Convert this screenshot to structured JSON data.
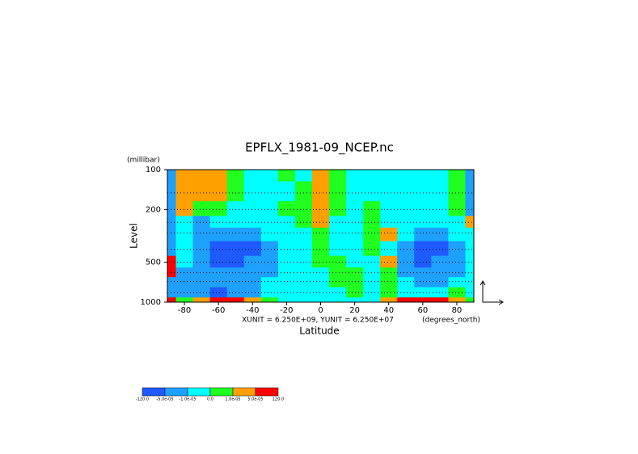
{
  "chart_data": {
    "type": "contour",
    "title": "EPFLX_1981-09_NCEP.nc",
    "x_label": "Latitude",
    "x_unit": "(degrees_north)",
    "y_label": "Level",
    "y_unit": "(millibar)",
    "annotation": "XUNIT = 6.250E+09, YUNIT = 6.250E+07",
    "log_y": true,
    "reverse_y": true,
    "xlim": [
      -90,
      90
    ],
    "xticks": [
      -80,
      -60,
      -40,
      -20,
      0,
      20,
      40,
      60,
      80
    ],
    "ylim": [
      100,
      1000
    ],
    "yticks": [
      100,
      200,
      500,
      1000
    ],
    "x": [
      -90,
      -80,
      -70,
      -60,
      -50,
      -40,
      -30,
      -20,
      -10,
      0,
      10,
      20,
      30,
      40,
      50,
      60,
      70,
      80,
      90
    ],
    "levels": [
      100,
      150,
      200,
      250,
      300,
      400,
      500,
      600,
      700,
      850,
      1000
    ],
    "z": [
      [
        -3e-05,
        3e-05,
        3e-05,
        3e-05,
        5e-06,
        -5e-06,
        -5e-06,
        5e-06,
        -5e-06,
        3e-05,
        5e-06,
        -5e-06,
        -5e-06,
        -5e-06,
        -5e-06,
        -5e-06,
        -5e-06,
        5e-06,
        -3e-05
      ],
      [
        -3e-05,
        3e-05,
        3e-05,
        3e-05,
        5e-06,
        -5e-06,
        -5e-06,
        -5e-06,
        5e-06,
        3e-05,
        5e-06,
        -5e-06,
        -5e-06,
        -5e-06,
        -5e-06,
        -5e-06,
        -5e-06,
        5e-06,
        -3e-05
      ],
      [
        -3e-05,
        3e-05,
        5e-06,
        5e-06,
        -5e-06,
        -5e-06,
        -5e-06,
        5e-06,
        5e-06,
        3e-05,
        5e-06,
        -5e-06,
        5e-06,
        -5e-06,
        -5e-06,
        -5e-06,
        -5e-06,
        5e-06,
        -3e-05
      ],
      [
        -3e-05,
        -5e-06,
        -3e-05,
        -5e-06,
        -5e-06,
        -5e-06,
        -5e-06,
        -5e-06,
        5e-06,
        3e-05,
        -5e-06,
        -5e-06,
        5e-06,
        -5e-06,
        -5e-06,
        -5e-06,
        -5e-06,
        -5e-06,
        3e-05
      ],
      [
        -3e-05,
        -5e-06,
        -3e-05,
        -3e-05,
        -3e-05,
        -3e-05,
        -5e-06,
        -5e-06,
        -5e-06,
        5e-06,
        -5e-06,
        -5e-06,
        5e-06,
        3e-05,
        -5e-06,
        -3e-05,
        -3e-05,
        -5e-06,
        -5e-06
      ],
      [
        -3e-05,
        -5e-06,
        -3e-05,
        -0.0001,
        -0.0001,
        -0.0001,
        -3e-05,
        -5e-06,
        -5e-06,
        5e-06,
        -5e-06,
        -5e-06,
        5e-06,
        -5e-06,
        -3e-05,
        -0.0001,
        -0.0001,
        -3e-05,
        -5e-06
      ],
      [
        0.0001,
        -5e-06,
        -3e-05,
        -0.0001,
        -0.0001,
        -3e-05,
        -3e-05,
        -5e-06,
        -5e-06,
        5e-06,
        5e-06,
        -5e-06,
        -5e-06,
        3e-05,
        -3e-05,
        -0.0001,
        -3e-05,
        -3e-05,
        -5e-06
      ],
      [
        0.0001,
        -3e-05,
        -3e-05,
        -3e-05,
        -3e-05,
        -3e-05,
        -3e-05,
        -5e-06,
        -5e-06,
        -5e-06,
        5e-06,
        5e-06,
        -5e-06,
        5e-06,
        -3e-05,
        -3e-05,
        -3e-05,
        -3e-05,
        -5e-06
      ],
      [
        -3e-05,
        -3e-05,
        -3e-05,
        -3e-05,
        -3e-05,
        -3e-05,
        -5e-06,
        -5e-06,
        -5e-06,
        -5e-06,
        5e-06,
        5e-06,
        -5e-06,
        5e-06,
        -5e-06,
        -3e-05,
        -3e-05,
        -5e-06,
        -5e-06
      ],
      [
        -3e-05,
        -3e-05,
        -3e-05,
        -0.0001,
        -3e-05,
        -3e-05,
        -5e-06,
        -5e-06,
        -5e-06,
        -5e-06,
        -5e-06,
        5e-06,
        -5e-06,
        5e-06,
        -5e-06,
        -5e-06,
        -5e-06,
        5e-06,
        -5e-06
      ],
      [
        0.0001,
        5e-06,
        3e-05,
        0.0001,
        0.0001,
        3e-05,
        5e-06,
        -5e-06,
        -5e-06,
        -5e-06,
        -5e-06,
        -5e-06,
        -5e-06,
        3e-05,
        0.0001,
        0.0001,
        0.0001,
        3e-05,
        5e-06
      ]
    ],
    "contour_levels": [
      {
        "value": -120,
        "label": "-120.0"
      },
      {
        "value": -5e-05,
        "label": "-5.0e-05"
      },
      {
        "value": -1e-05,
        "label": "-1.0e-05"
      },
      {
        "value": 0,
        "label": "0.0"
      },
      {
        "value": 1e-05,
        "label": "1.0e-05"
      },
      {
        "value": 5e-05,
        "label": "5.0e-05"
      },
      {
        "value": 120,
        "label": "120.0"
      }
    ],
    "colors": [
      "#1e5aff",
      "#1ea0ff",
      "#00ffff",
      "#20ff20",
      "#ffa000",
      "#ff0000"
    ],
    "grid": true
  }
}
